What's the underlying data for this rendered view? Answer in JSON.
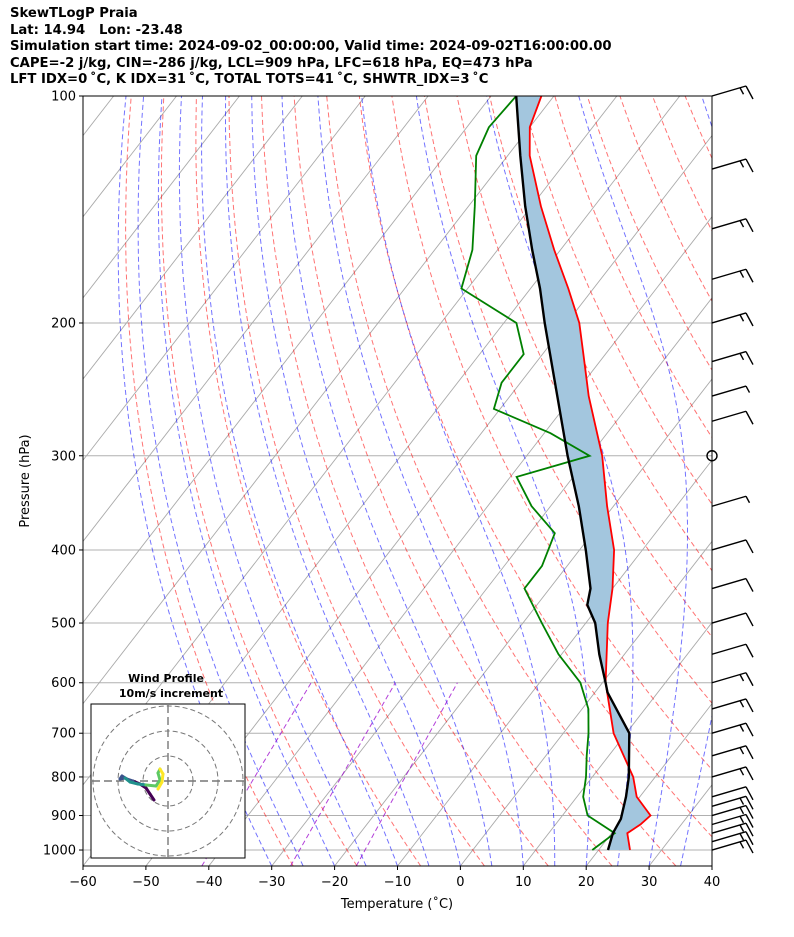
{
  "header": {
    "title": "SkewTLogP Praia",
    "location": "Lat: 14.94   Lon: -23.48",
    "times": "Simulation start time: 2024-09-02_00:00:00, Valid time: 2024-09-02T16:00:00.00",
    "indices_1": "CAPE=-2 j/kg, CIN=-286 j/kg, LCL=909 hPa, LFC=618 hPa, EQ=473 hPa",
    "indices_2": "LFT IDX=0 ˚C, K IDX=31 ˚C, TOTAL TOTS=41 ˚C, SHWTR_IDX=3 ˚C"
  },
  "chart_data": {
    "type": "line",
    "xlabel": "Temperature (˚C)",
    "ylabel": "Pressure (hPa)",
    "xlim": [
      -60,
      40
    ],
    "ylim": [
      1050,
      100
    ],
    "y_scale": "log",
    "grid": true,
    "x_ticks": [
      "−60",
      "−50",
      "−40",
      "−30",
      "−20",
      "−10",
      "0",
      "10",
      "20",
      "30",
      "40"
    ],
    "y_ticks": [
      "100",
      "200",
      "300",
      "400",
      "500",
      "600",
      "700",
      "800",
      "900",
      "1000"
    ],
    "colors": {
      "temperature": "#ff0000",
      "dewpoint": "#008000",
      "parcel": "#000000",
      "cape_fill": "#a3c6de",
      "dry_adiabat": "#ff0000",
      "moist_adiabat": "#0000ff",
      "mixing_ratio": "#9900cc",
      "isotherm": "#aaaaaa",
      "wind_barb": "#000000"
    },
    "series": [
      {
        "key": "temperature",
        "points": [
          [
            1000,
            25.0
          ],
          [
            950,
            22.5
          ],
          [
            925,
            23.5
          ],
          [
            900,
            24.0
          ],
          [
            850,
            19.5
          ],
          [
            800,
            16.5
          ],
          [
            700,
            8.0
          ],
          [
            600,
            0.5
          ],
          [
            500,
            -6.5
          ],
          [
            450,
            -10.0
          ],
          [
            400,
            -14.5
          ],
          [
            350,
            -21.0
          ],
          [
            300,
            -28.0
          ],
          [
            250,
            -37.5
          ],
          [
            220,
            -43.5
          ],
          [
            200,
            -48.0
          ],
          [
            180,
            -54.0
          ],
          [
            160,
            -61.0
          ],
          [
            140,
            -68.5
          ],
          [
            120,
            -76.5
          ],
          [
            110,
            -80.0
          ],
          [
            100,
            -82.0
          ]
        ]
      },
      {
        "key": "dewpoint",
        "points": [
          [
            1000,
            19.0
          ],
          [
            950,
            20.5
          ],
          [
            900,
            14.0
          ],
          [
            850,
            11.0
          ],
          [
            800,
            9.0
          ],
          [
            750,
            6.5
          ],
          [
            700,
            4.0
          ],
          [
            650,
            1.0
          ],
          [
            600,
            -3.5
          ],
          [
            550,
            -10.5
          ],
          [
            500,
            -17.0
          ],
          [
            450,
            -24.0
          ],
          [
            420,
            -24.0
          ],
          [
            380,
            -26.0
          ],
          [
            350,
            -33.0
          ],
          [
            320,
            -39.0
          ],
          [
            300,
            -30.0
          ],
          [
            280,
            -39.0
          ],
          [
            260,
            -51.0
          ],
          [
            240,
            -53.0
          ],
          [
            220,
            -53.0
          ],
          [
            200,
            -58.0
          ],
          [
            180,
            -71.0
          ],
          [
            160,
            -74.0
          ],
          [
            140,
            -79.0
          ],
          [
            120,
            -85.0
          ],
          [
            110,
            -86.5
          ],
          [
            100,
            -86.0
          ]
        ]
      },
      {
        "key": "parcel",
        "points": [
          [
            1000,
            21.5
          ],
          [
            950,
            20.2
          ],
          [
            909,
            19.7
          ],
          [
            850,
            17.8
          ],
          [
            800,
            15.8
          ],
          [
            700,
            10.5
          ],
          [
            618,
            2.0
          ],
          [
            600,
            0.5
          ],
          [
            550,
            -4.0
          ],
          [
            500,
            -8.5
          ],
          [
            473,
            -12.0
          ],
          [
            450,
            -13.5
          ],
          [
            400,
            -19.0
          ],
          [
            350,
            -25.5
          ],
          [
            300,
            -33.5
          ],
          [
            250,
            -42.5
          ],
          [
            200,
            -53.5
          ],
          [
            180,
            -58.5
          ],
          [
            160,
            -64.5
          ],
          [
            140,
            -71.0
          ],
          [
            120,
            -78.0
          ],
          [
            100,
            -86.0
          ]
        ]
      }
    ],
    "wind_barbs_speed_kt": [
      {
        "p": 1000,
        "spd": 15
      },
      {
        "p": 975,
        "spd": 15
      },
      {
        "p": 950,
        "spd": 15
      },
      {
        "p": 925,
        "spd": 15
      },
      {
        "p": 900,
        "spd": 15
      },
      {
        "p": 875,
        "spd": 15
      },
      {
        "p": 850,
        "spd": 10
      },
      {
        "p": 800,
        "spd": 15
      },
      {
        "p": 750,
        "spd": 15
      },
      {
        "p": 700,
        "spd": 15
      },
      {
        "p": 650,
        "spd": 15
      },
      {
        "p": 600,
        "spd": 15
      },
      {
        "p": 550,
        "spd": 10
      },
      {
        "p": 500,
        "spd": 10
      },
      {
        "p": 450,
        "spd": 10
      },
      {
        "p": 400,
        "spd": 10
      },
      {
        "p": 350,
        "spd": 5
      },
      {
        "p": 300,
        "spd": 0
      },
      {
        "p": 270,
        "spd": 10
      },
      {
        "p": 250,
        "spd": 5
      },
      {
        "p": 225,
        "spd": 15
      },
      {
        "p": 200,
        "spd": 15
      },
      {
        "p": 175,
        "spd": 15
      },
      {
        "p": 150,
        "spd": 15
      },
      {
        "p": 125,
        "spd": 15
      },
      {
        "p": 100,
        "spd": 15
      }
    ],
    "inset": {
      "title": "Wind Profile",
      "subtitle": "10m/s increment",
      "colormap": [
        "#440154",
        "#3b528b",
        "#21918c",
        "#5ec962",
        "#fde725"
      ]
    }
  }
}
